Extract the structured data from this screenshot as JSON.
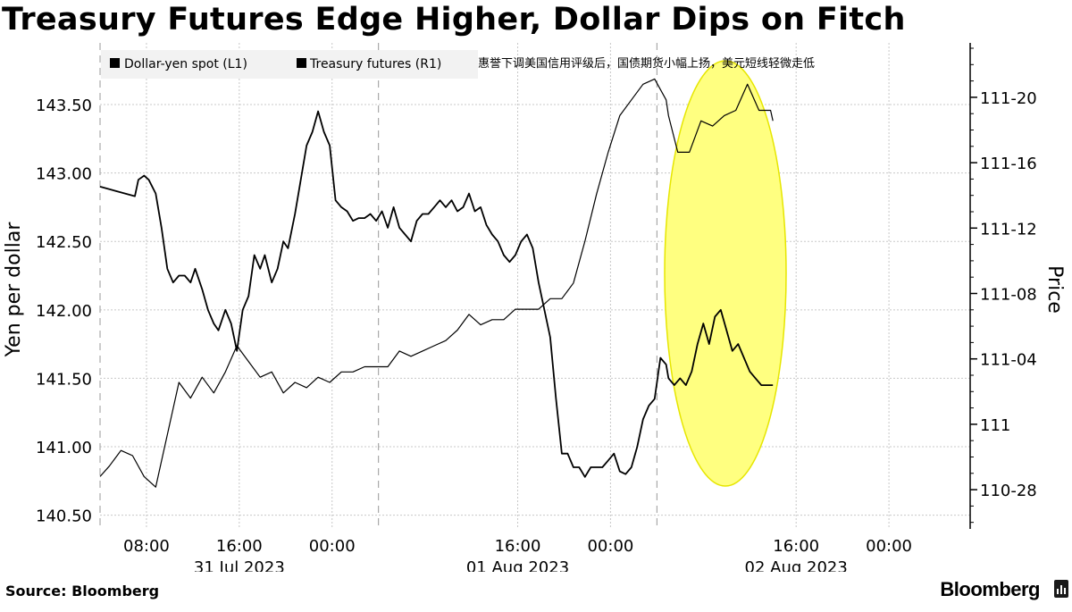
{
  "chart_data": {
    "type": "line",
    "title": "Treasury Futures Edge Higher, Dollar Dips on Fitch",
    "source": "Source: Bloomberg",
    "brand": "Bloomberg",
    "annotation": "惠誉下调美国信用评级后，国债期货小幅上扬，美元短线轻微走低",
    "legend_placement": "top-left",
    "grid": true,
    "colors": {
      "line": "#000000",
      "highlight_fill": "#ffff80",
      "highlight_stroke": "#e6e600",
      "grid": "#c8c8c8"
    },
    "x_ticks": [
      {
        "x": 8,
        "label": "08:00"
      },
      {
        "x": 16,
        "label": "16:00"
      },
      {
        "x": 24,
        "label": "00:00"
      },
      {
        "x": 40,
        "label": "16:00"
      },
      {
        "x": 48,
        "label": "00:00"
      },
      {
        "x": 64,
        "label": "16:00"
      },
      {
        "x": 72,
        "label": "00:00"
      }
    ],
    "x_dates": [
      {
        "x": 16,
        "label": "31 Jul 2023"
      },
      {
        "x": 40,
        "label": "01 Aug 2023"
      },
      {
        "x": 64,
        "label": "02 Aug 2023"
      }
    ],
    "x_range": [
      4,
      79
    ],
    "left_axis": {
      "title": "Yen per dollar",
      "range": [
        140.4,
        143.95
      ],
      "ticks": [
        140.5,
        141.0,
        141.5,
        142.0,
        142.5,
        143.0,
        143.5
      ],
      "tick_labels": [
        "140.50",
        "141.00",
        "141.50",
        "142.00",
        "142.50",
        "143.00",
        "143.50"
      ]
    },
    "right_axis": {
      "title": "Price",
      "range": [
        110.8,
        111.729
      ],
      "ticks": [
        110.875,
        111.0,
        111.125,
        111.25,
        111.375,
        111.5,
        111.625
      ],
      "tick_labels": [
        "110-28",
        "111",
        "111-04",
        "111-08",
        "111-12",
        "111-16",
        "111-20"
      ]
    },
    "series": [
      {
        "name": "Dollar-yen spot (L1)",
        "axis": "left",
        "x": [
          4,
          7,
          7.3,
          7.8,
          8.2,
          8.8,
          9.3,
          9.8,
          10.3,
          10.8,
          11.3,
          11.8,
          12.2,
          12.8,
          13.3,
          13.8,
          14.2,
          14.8,
          15.3,
          15.8,
          16.3,
          16.8,
          17.3,
          17.8,
          18.2,
          18.8,
          19.3,
          19.8,
          20.2,
          20.8,
          21.3,
          21.8,
          22.3,
          22.8,
          23.3,
          23.8,
          24.3,
          24.8,
          25.3,
          25.8,
          26.3,
          26.8,
          27.3,
          27.8,
          28.3,
          28.8,
          29.3,
          29.8,
          30.3,
          30.8,
          31.3,
          31.8,
          32.3,
          32.8,
          33.3,
          33.8,
          34.3,
          34.8,
          35.3,
          35.8,
          36.3,
          36.8,
          37.3,
          37.8,
          38.3,
          38.8,
          39.3,
          39.8,
          40.3,
          40.8,
          41.3,
          41.8,
          42.3,
          42.8,
          43.3,
          43.8,
          44.3,
          44.8,
          45.3,
          45.8,
          46.3,
          46.8,
          47.3,
          47.8,
          48.3,
          48.8,
          49.3,
          49.8,
          50.3,
          50.8,
          51.3,
          51.8,
          52.3,
          52.8,
          53,
          53.5,
          54,
          54.5,
          55,
          55.5,
          56,
          56.5,
          57,
          57.5,
          58,
          58.5,
          59,
          59.5,
          60,
          60.5,
          61,
          61.5,
          62
        ],
        "y": [
          142.9,
          142.83,
          142.95,
          142.98,
          142.95,
          142.85,
          142.6,
          142.3,
          142.2,
          142.25,
          142.25,
          142.2,
          142.3,
          142.15,
          142.0,
          141.9,
          141.85,
          142.0,
          141.9,
          141.7,
          142.0,
          142.1,
          142.4,
          142.3,
          142.4,
          142.2,
          142.3,
          142.5,
          142.45,
          142.7,
          142.95,
          143.2,
          143.3,
          143.45,
          143.3,
          143.2,
          142.8,
          142.75,
          142.72,
          142.65,
          142.67,
          142.67,
          142.7,
          142.65,
          142.72,
          142.6,
          142.75,
          142.6,
          142.55,
          142.5,
          142.65,
          142.7,
          142.7,
          142.75,
          142.8,
          142.75,
          142.8,
          142.72,
          142.75,
          142.85,
          142.72,
          142.75,
          142.62,
          142.55,
          142.5,
          142.4,
          142.35,
          142.4,
          142.5,
          142.55,
          142.45,
          142.2,
          142.0,
          141.8,
          141.35,
          140.95,
          140.95,
          140.85,
          140.85,
          140.78,
          140.85,
          140.85,
          140.85,
          140.9,
          140.95,
          140.82,
          140.8,
          140.85,
          141.0,
          141.2,
          141.3,
          141.35,
          141.65,
          141.6,
          141.5,
          141.45,
          141.5,
          141.45,
          141.55,
          141.75,
          141.9,
          141.75,
          141.95,
          142.0,
          141.85,
          141.7,
          141.75,
          141.65,
          141.55,
          141.5,
          141.45,
          141.45,
          141.45
        ]
      },
      {
        "name": "Treasury futures (R1)",
        "axis": "right",
        "x": [
          4,
          4.8,
          5.8,
          6.8,
          7.8,
          8.8,
          9.8,
          10.8,
          11.8,
          12.8,
          13.8,
          14.8,
          15.8,
          16.8,
          17.8,
          18.8,
          19.8,
          20.8,
          21.8,
          22.8,
          23.8,
          24.8,
          25.8,
          26.8,
          27.8,
          28.8,
          29.8,
          30.8,
          31.8,
          32.8,
          33.8,
          34.8,
          35.8,
          36.8,
          37.8,
          38.8,
          39.8,
          40.8,
          41.8,
          42.8,
          43.8,
          44.8,
          45.8,
          46.8,
          47.8,
          48.8,
          49.8,
          50.8,
          51.8,
          52.8,
          53,
          53.8,
          54.8,
          55.8,
          56.8,
          57.8,
          58.8,
          59.8,
          60.8,
          61.8,
          62
        ],
        "y": [
          110.9,
          110.92,
          110.95,
          110.94,
          110.9,
          110.88,
          110.98,
          111.08,
          111.05,
          111.09,
          111.06,
          111.1,
          111.15,
          111.12,
          111.09,
          111.1,
          111.06,
          111.08,
          111.07,
          111.09,
          111.08,
          111.1,
          111.1,
          111.11,
          111.11,
          111.11,
          111.14,
          111.13,
          111.14,
          111.15,
          111.16,
          111.18,
          111.21,
          111.19,
          111.2,
          111.2,
          111.22,
          111.22,
          111.22,
          111.24,
          111.24,
          111.27,
          111.35,
          111.44,
          111.52,
          111.59,
          111.62,
          111.65,
          111.66,
          111.62,
          111.59,
          111.52,
          111.52,
          111.58,
          111.57,
          111.59,
          111.6,
          111.65,
          111.6,
          111.6,
          111.58
        ]
      }
    ]
  }
}
